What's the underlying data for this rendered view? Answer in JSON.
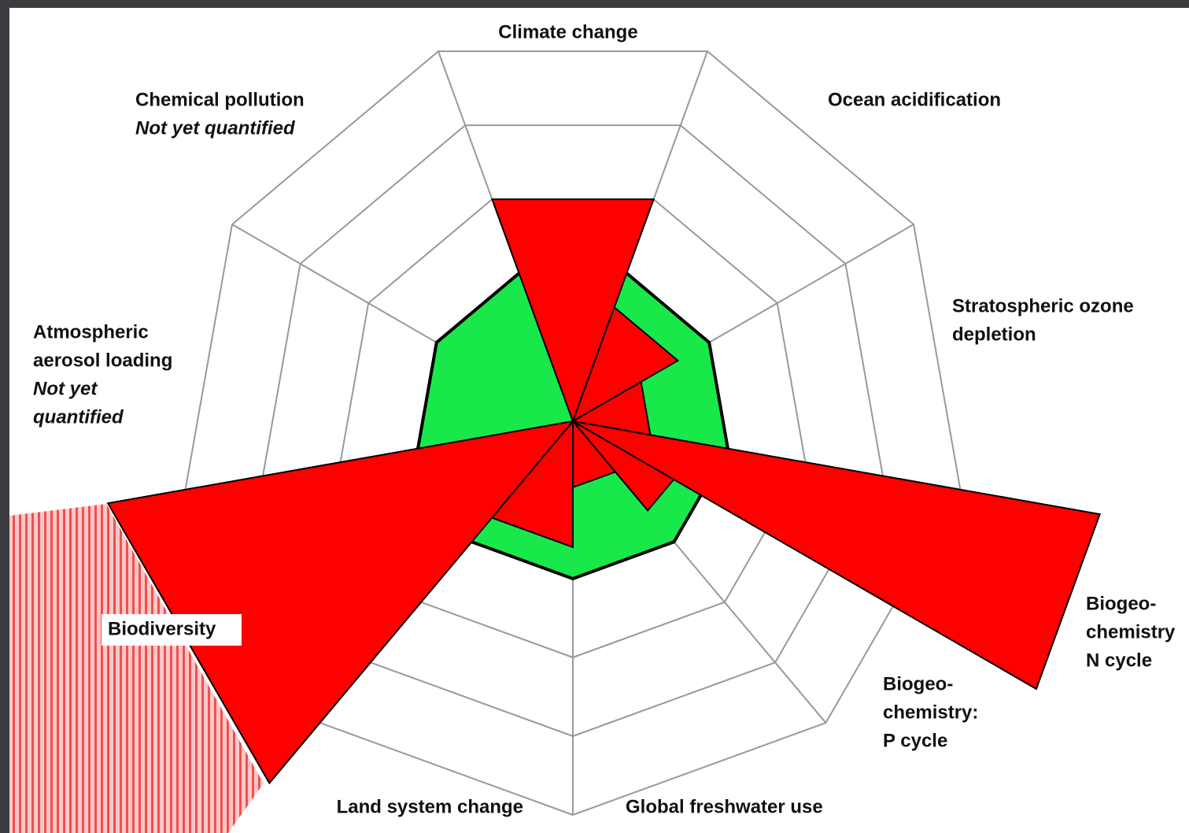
{
  "chart_data": {
    "type": "radial",
    "categories": [
      [
        "Climate change"
      ],
      [
        "Ocean acidification"
      ],
      [
        "Stratospheric ozone",
        "depletion"
      ],
      [
        "Biogeo-",
        "chemistry",
        "N cycle"
      ],
      [
        "Biogeo-",
        "chemistry:",
        "P cycle"
      ],
      [
        "Global freshwater use"
      ],
      [
        "Land system change"
      ],
      [
        "Biodiversity"
      ],
      [
        "Atmospheric",
        "aerosol loading"
      ],
      [
        "Chemical pollution"
      ]
    ],
    "notes": [
      null,
      null,
      null,
      null,
      null,
      null,
      null,
      null,
      [
        "Not yet",
        "quantified"
      ],
      [
        "Not yet quantified"
      ]
    ],
    "values": [
      1.5,
      0.77,
      0.5,
      3.4,
      0.74,
      0.42,
      0.8,
      3.0,
      null,
      null
    ],
    "boundary": 1,
    "rlim": [
      0,
      2.5
    ],
    "rticks": [
      0.5,
      1,
      1.5,
      2,
      2.5
    ],
    "color": "#ff0000",
    "boundary_color": "#19e84a",
    "grid": true
  }
}
